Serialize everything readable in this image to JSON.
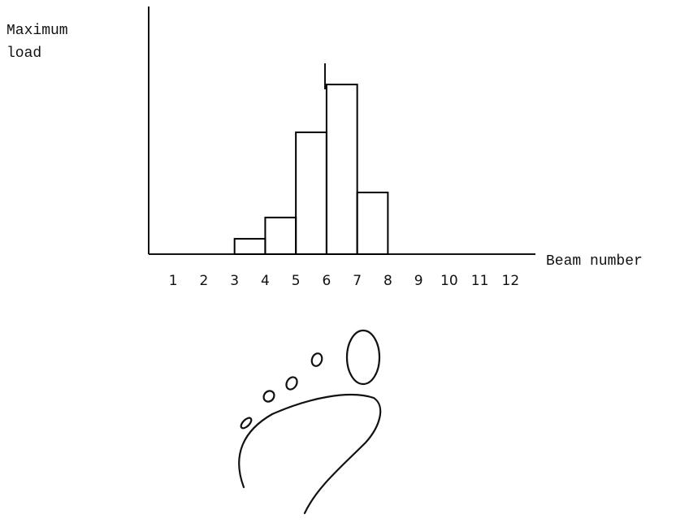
{
  "chart_data": {
    "type": "histogram",
    "y_label": "Maximum load",
    "x_label": "Beam number",
    "bins": [
      3,
      4,
      5,
      6,
      7,
      8
    ],
    "values": [
      6.2,
      14.8,
      49.2,
      68.5,
      24.9
    ],
    "color": "#000000",
    "xlim": [
      0.2,
      12.6
    ],
    "xticks": [
      1,
      2,
      3,
      4,
      5,
      6,
      7,
      8,
      9,
      10,
      11,
      12
    ],
    "ylim": [
      0,
      100
    ],
    "grid": false
  }
}
